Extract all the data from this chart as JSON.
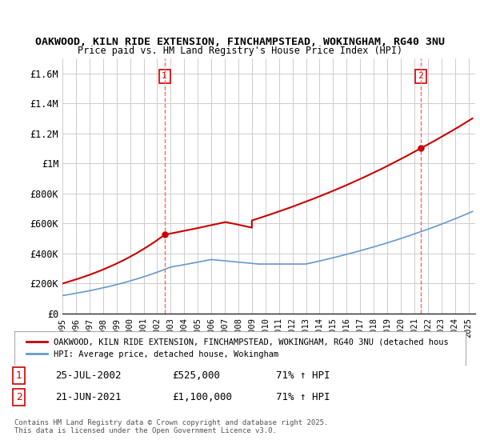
{
  "title_line1": "OAKWOOD, KILN RIDE EXTENSION, FINCHAMPSTEAD, WOKINGHAM, RG40 3NU",
  "title_line2": "Price paid vs. HM Land Registry's House Price Index (HPI)",
  "ylabel_ticks": [
    "£0",
    "£200K",
    "£400K",
    "£600K",
    "£800K",
    "£1M",
    "£1.2M",
    "£1.4M",
    "£1.6M"
  ],
  "ytick_values": [
    0,
    200000,
    400000,
    600000,
    800000,
    1000000,
    1200000,
    1400000,
    1600000
  ],
  "ylim": [
    0,
    1700000
  ],
  "xlim_start": 1995.0,
  "xlim_end": 2025.5,
  "vline1_x": 2002.55,
  "vline2_x": 2021.47,
  "marker1_x": 2002.55,
  "marker1_y": 525000,
  "marker2_x": 2021.47,
  "marker2_y": 1100000,
  "red_color": "#cc0000",
  "blue_color": "#6699cc",
  "vline_color": "#ff6666",
  "legend_label_red": "OAKWOOD, KILN RIDE EXTENSION, FINCHAMPSTEAD, WOKINGHAM, RG40 3NU (detached hous",
  "legend_label_blue": "HPI: Average price, detached house, Wokingham",
  "table_row1": [
    "1",
    "25-JUL-2002",
    "£525,000",
    "71% ↑ HPI"
  ],
  "table_row2": [
    "2",
    "21-JUN-2021",
    "£1,100,000",
    "71% ↑ HPI"
  ],
  "footer": "Contains HM Land Registry data © Crown copyright and database right 2025.\nThis data is licensed under the Open Government Licence v3.0.",
  "bg_color": "#ffffff",
  "grid_color": "#cccccc",
  "xtick_years": [
    1995,
    1996,
    1997,
    1998,
    1999,
    2000,
    2001,
    2002,
    2003,
    2004,
    2005,
    2006,
    2007,
    2008,
    2009,
    2010,
    2011,
    2012,
    2013,
    2014,
    2015,
    2016,
    2017,
    2018,
    2019,
    2020,
    2021,
    2022,
    2023,
    2024,
    2025
  ]
}
